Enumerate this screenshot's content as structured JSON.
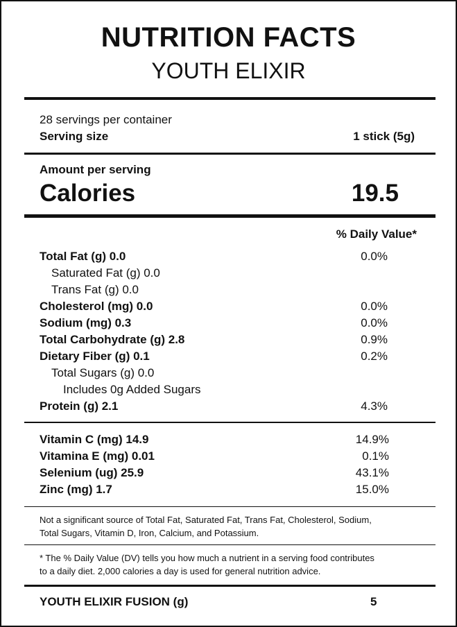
{
  "header": {
    "title": "NUTRITION FACTS",
    "subtitle": "YOUTH ELIXIR"
  },
  "serving": {
    "servings": "28 servings per container",
    "size_label": "Serving size",
    "size_value": "1 stick (5g)"
  },
  "calories": {
    "amount_label": "Amount per serving",
    "label": "Calories",
    "value": "19.5"
  },
  "daily_value_header": "% Daily Value*",
  "nutrients": [
    {
      "label": "Total Fat (g) 0.0",
      "dv": "0.0%",
      "bold": true,
      "indent": 0
    },
    {
      "label": "Saturated Fat (g) 0.0",
      "dv": null,
      "bold": false,
      "indent": 1
    },
    {
      "label": "Trans Fat (g) 0.0",
      "dv": null,
      "bold": false,
      "indent": 1
    },
    {
      "label": "Cholesterol (mg) 0.0",
      "dv": "0.0%",
      "bold": true,
      "indent": 0
    },
    {
      "label": "Sodium (mg) 0.3",
      "dv": "0.0%",
      "bold": true,
      "indent": 0
    },
    {
      "label": "Total Carbohydrate (g) 2.8",
      "dv": "0.9%",
      "bold": true,
      "indent": 0
    },
    {
      "label": "Dietary Fiber (g) 0.1",
      "dv": "0.2%",
      "bold": true,
      "indent": 0
    },
    {
      "label": "Total Sugars (g) 0.0",
      "dv": null,
      "bold": false,
      "indent": 1
    },
    {
      "label": "Includes 0g Added Sugars",
      "dv": null,
      "bold": false,
      "indent": 2
    },
    {
      "label": "Protein (g) 2.1",
      "dv": "4.3%",
      "bold": true,
      "indent": 0
    }
  ],
  "vitamins": [
    {
      "label": "Vitamin C (mg) 14.9",
      "dv": "14.9%"
    },
    {
      "label": "Vitamina E (mg) 0.01",
      "dv": "0.1%"
    },
    {
      "label": "Selenium (ug) 25.9",
      "dv": "43.1%"
    },
    {
      "label": "Zinc (mg) 1.7",
      "dv": "15.0%"
    }
  ],
  "footnotes": {
    "not_significant": [
      "Not a significant source of Total Fat, Saturated Fat, Trans Fat, Cholesterol, Sodium,",
      "Total Sugars, Vitamin D, Iron, Calcium, and Potassium."
    ],
    "daily_value": [
      "* The % Daily Value (DV) tells you how much a nutrient in a serving food contributes",
      "to a daily diet. 2,000 calories a day is used for general nutrition advice."
    ]
  },
  "footer": {
    "label": "YOUTH ELIXIR FUSION (g)",
    "value": "5"
  }
}
